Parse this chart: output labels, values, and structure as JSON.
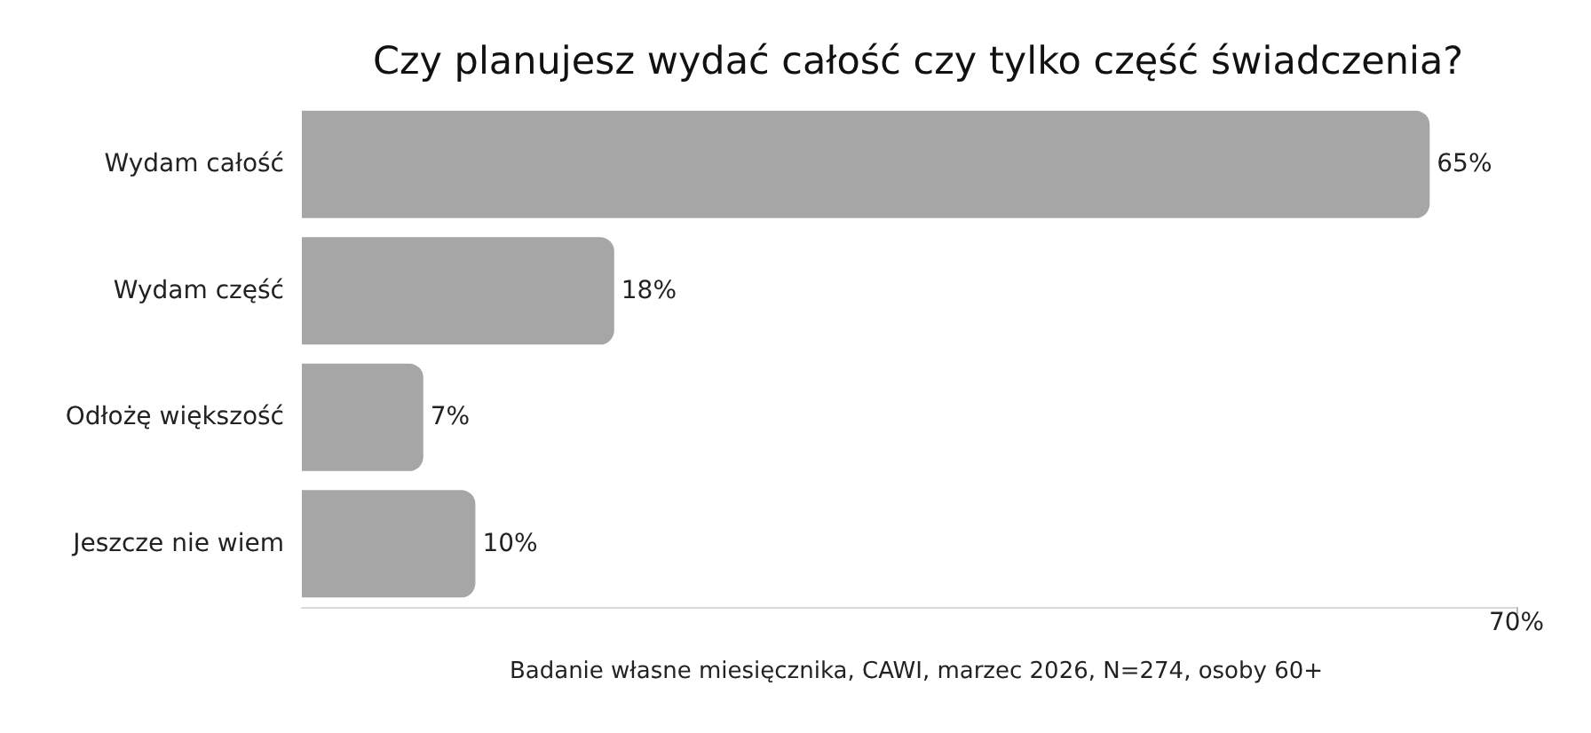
{
  "chart_data": {
    "type": "bar",
    "orientation": "horizontal",
    "title": "Czy planujesz wydać całość czy tylko część świadczenia?",
    "categories": [
      "Wydam całość",
      "Wydam część",
      "Odłożę większość",
      "Jeszcze nie wiem"
    ],
    "values": [
      65,
      18,
      7,
      10
    ],
    "color": "#a6a6a6",
    "value_labels": [
      "65%",
      "18%",
      "7%",
      "10%"
    ],
    "xlim": [
      0,
      70
    ],
    "xticks": [
      {
        "value": 70,
        "label": "70%"
      }
    ],
    "grid": false,
    "annotations": [
      "Badanie własne miesięcznika, CAWI, marzec 2026, N=274, osoby 60+"
    ]
  }
}
